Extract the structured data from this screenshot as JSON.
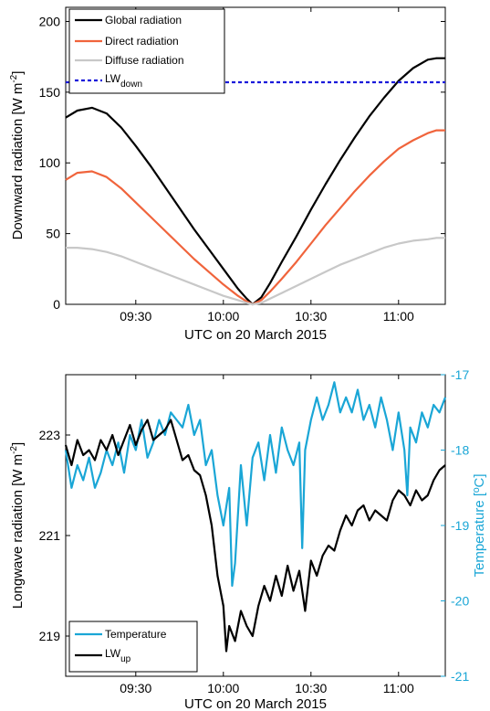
{
  "colors": {
    "global": "#000000",
    "direct": "#f0643c",
    "diffuse": "#c8c8c8",
    "lwdown": "#1a1adb",
    "temperature": "#1aa6d6",
    "lwup": "#000000"
  },
  "chart_data": [
    {
      "type": "line",
      "xlabel": "UTC on 20 March 2015",
      "ylabel": "Downward radiation [W m⁻²]",
      "ylabel_parts": {
        "main": "Downward radiation [W m",
        "sup": "-2",
        "close": "]"
      },
      "xlim": [
        "09:06",
        "11:16"
      ],
      "ylim": [
        0,
        210
      ],
      "xticks": [
        "09:30",
        "10:00",
        "10:30",
        "11:00"
      ],
      "yticks": [
        0,
        50,
        100,
        150,
        200
      ],
      "legend_position": "top-left",
      "series": [
        {
          "name": "Global radiation",
          "color_key": "global",
          "style": "solid",
          "x": [
            "09:06",
            "09:10",
            "09:15",
            "09:20",
            "09:25",
            "09:30",
            "09:35",
            "09:40",
            "09:45",
            "09:50",
            "09:55",
            "10:00",
            "10:05",
            "10:08",
            "10:10",
            "10:13",
            "10:16",
            "10:20",
            "10:25",
            "10:30",
            "10:35",
            "10:40",
            "10:45",
            "10:50",
            "10:55",
            "11:00",
            "11:05",
            "11:10",
            "11:13",
            "11:16"
          ],
          "y": [
            132,
            137,
            139,
            135,
            125,
            112,
            98,
            83,
            68,
            53,
            39,
            25,
            11,
            4,
            0,
            5,
            15,
            30,
            48,
            67,
            85,
            102,
            118,
            133,
            146,
            158,
            167,
            173,
            174,
            174
          ]
        },
        {
          "name": "Direct radiation",
          "color_key": "direct",
          "style": "solid",
          "x": [
            "09:06",
            "09:10",
            "09:15",
            "09:20",
            "09:25",
            "09:30",
            "09:35",
            "09:40",
            "09:45",
            "09:50",
            "09:55",
            "10:00",
            "10:05",
            "10:08",
            "10:10",
            "10:13",
            "10:16",
            "10:20",
            "10:25",
            "10:30",
            "10:35",
            "10:40",
            "10:45",
            "10:50",
            "10:55",
            "11:00",
            "11:05",
            "11:10",
            "11:13",
            "11:16"
          ],
          "y": [
            88,
            93,
            94,
            90,
            82,
            72,
            62,
            52,
            42,
            32,
            23,
            14,
            6,
            2,
            0,
            3,
            9,
            18,
            30,
            43,
            56,
            68,
            80,
            91,
            101,
            110,
            116,
            121,
            123,
            123
          ]
        },
        {
          "name": "Diffuse radiation",
          "color_key": "diffuse",
          "style": "solid",
          "x": [
            "09:06",
            "09:10",
            "09:15",
            "09:20",
            "09:25",
            "09:30",
            "09:35",
            "09:40",
            "09:45",
            "09:50",
            "09:55",
            "10:00",
            "10:05",
            "10:08",
            "10:10",
            "10:13",
            "10:16",
            "10:20",
            "10:25",
            "10:30",
            "10:35",
            "10:40",
            "10:45",
            "10:50",
            "10:55",
            "11:00",
            "11:05",
            "11:10",
            "11:13",
            "11:16"
          ],
          "y": [
            40,
            40,
            39,
            37,
            34,
            30,
            26,
            22,
            18,
            14,
            10,
            6,
            3,
            1,
            0,
            1,
            4,
            8,
            13,
            18,
            23,
            28,
            32,
            36,
            40,
            43,
            45,
            46,
            47,
            47
          ]
        },
        {
          "name": "LW",
          "name_sub": "down",
          "color_key": "lwdown",
          "style": "dashed",
          "x": [
            "09:06",
            "09:20",
            "09:35",
            "09:50",
            "10:05",
            "10:20",
            "10:35",
            "10:50",
            "11:05",
            "11:16"
          ],
          "y": [
            157,
            157,
            157,
            157,
            157,
            157,
            157,
            157,
            157,
            157
          ]
        }
      ]
    },
    {
      "type": "line",
      "xlabel": "UTC on 20 March 2015",
      "ylabel": "Longwave radiation [W m⁻²]",
      "ylabel_parts": {
        "main": "Longwave radiation [W m",
        "sup": "-2",
        "close": "]"
      },
      "ylabel_right": "Temperature [ºC]",
      "xlim": [
        "09:06",
        "11:16"
      ],
      "ylim": [
        218.2,
        224.2
      ],
      "ylim_right": [
        -21,
        -17
      ],
      "xticks": [
        "09:30",
        "10:00",
        "10:30",
        "11:00"
      ],
      "yticks": [
        219,
        221,
        223
      ],
      "yticks_right": [
        -21,
        -20,
        -19,
        -18,
        -17
      ],
      "legend_position": "bottom-left",
      "series": [
        {
          "name": "Temperature",
          "color_key": "temperature",
          "axis": "right",
          "x": [
            "09:06",
            "09:08",
            "09:10",
            "09:12",
            "09:14",
            "09:16",
            "09:18",
            "09:20",
            "09:22",
            "09:24",
            "09:26",
            "09:28",
            "09:30",
            "09:32",
            "09:34",
            "09:36",
            "09:38",
            "09:40",
            "09:42",
            "09:44",
            "09:46",
            "09:48",
            "09:50",
            "09:52",
            "09:54",
            "09:56",
            "09:58",
            "10:00",
            "10:02",
            "10:03",
            "10:04",
            "10:06",
            "10:08",
            "10:10",
            "10:12",
            "10:14",
            "10:16",
            "10:18",
            "10:20",
            "10:22",
            "10:24",
            "10:26",
            "10:27",
            "10:28",
            "10:30",
            "10:32",
            "10:34",
            "10:36",
            "10:38",
            "10:40",
            "10:42",
            "10:44",
            "10:46",
            "10:48",
            "10:50",
            "10:52",
            "10:54",
            "10:56",
            "10:58",
            "11:00",
            "11:02",
            "11:03",
            "11:04",
            "11:06",
            "11:08",
            "11:10",
            "11:12",
            "11:14",
            "11:16"
          ],
          "y": [
            -18.0,
            -18.5,
            -18.2,
            -18.4,
            -18.1,
            -18.5,
            -18.3,
            -18.0,
            -18.2,
            -17.9,
            -18.3,
            -17.8,
            -18.0,
            -17.6,
            -18.1,
            -17.9,
            -17.6,
            -17.8,
            -17.5,
            -17.6,
            -17.7,
            -17.4,
            -17.8,
            -17.6,
            -18.2,
            -18.0,
            -18.6,
            -19.0,
            -18.5,
            -19.8,
            -19.5,
            -18.2,
            -19.0,
            -18.1,
            -17.9,
            -18.4,
            -17.8,
            -18.3,
            -17.7,
            -18.0,
            -18.2,
            -17.9,
            -19.3,
            -18.0,
            -17.6,
            -17.3,
            -17.6,
            -17.4,
            -17.1,
            -17.5,
            -17.3,
            -17.5,
            -17.2,
            -17.6,
            -17.4,
            -17.7,
            -17.3,
            -17.6,
            -18.0,
            -17.5,
            -18.0,
            -18.6,
            -17.7,
            -17.9,
            -17.5,
            -17.7,
            -17.4,
            -17.5,
            -17.3
          ]
        },
        {
          "name": "LW",
          "name_sub": "up",
          "color_key": "lwup",
          "axis": "left",
          "x": [
            "09:06",
            "09:08",
            "09:10",
            "09:12",
            "09:14",
            "09:16",
            "09:18",
            "09:20",
            "09:22",
            "09:24",
            "09:26",
            "09:28",
            "09:30",
            "09:32",
            "09:34",
            "09:36",
            "09:38",
            "09:40",
            "09:42",
            "09:44",
            "09:46",
            "09:48",
            "09:50",
            "09:52",
            "09:54",
            "09:56",
            "09:58",
            "10:00",
            "10:01",
            "10:02",
            "10:04",
            "10:06",
            "10:08",
            "10:10",
            "10:12",
            "10:14",
            "10:16",
            "10:18",
            "10:20",
            "10:22",
            "10:24",
            "10:26",
            "10:28",
            "10:30",
            "10:32",
            "10:34",
            "10:36",
            "10:38",
            "10:40",
            "10:42",
            "10:44",
            "10:46",
            "10:48",
            "10:50",
            "10:52",
            "10:54",
            "10:56",
            "10:58",
            "11:00",
            "11:02",
            "11:04",
            "11:06",
            "11:08",
            "11:10",
            "11:12",
            "11:14",
            "11:16"
          ],
          "y": [
            222.8,
            222.4,
            222.9,
            222.6,
            222.7,
            222.5,
            222.9,
            222.7,
            223.0,
            222.6,
            222.9,
            223.2,
            222.8,
            223.1,
            223.3,
            222.9,
            223.0,
            223.1,
            223.3,
            222.9,
            222.5,
            222.6,
            222.3,
            222.2,
            221.8,
            221.2,
            220.2,
            219.6,
            218.7,
            219.2,
            218.9,
            219.5,
            219.2,
            219.0,
            219.6,
            220.0,
            219.7,
            220.2,
            219.8,
            220.4,
            219.9,
            220.3,
            219.5,
            220.5,
            220.2,
            220.6,
            220.8,
            220.7,
            221.1,
            221.4,
            221.2,
            221.5,
            221.6,
            221.3,
            221.5,
            221.4,
            221.3,
            221.7,
            221.9,
            221.8,
            221.6,
            221.9,
            221.7,
            221.8,
            222.1,
            222.3,
            222.4
          ]
        }
      ]
    }
  ]
}
